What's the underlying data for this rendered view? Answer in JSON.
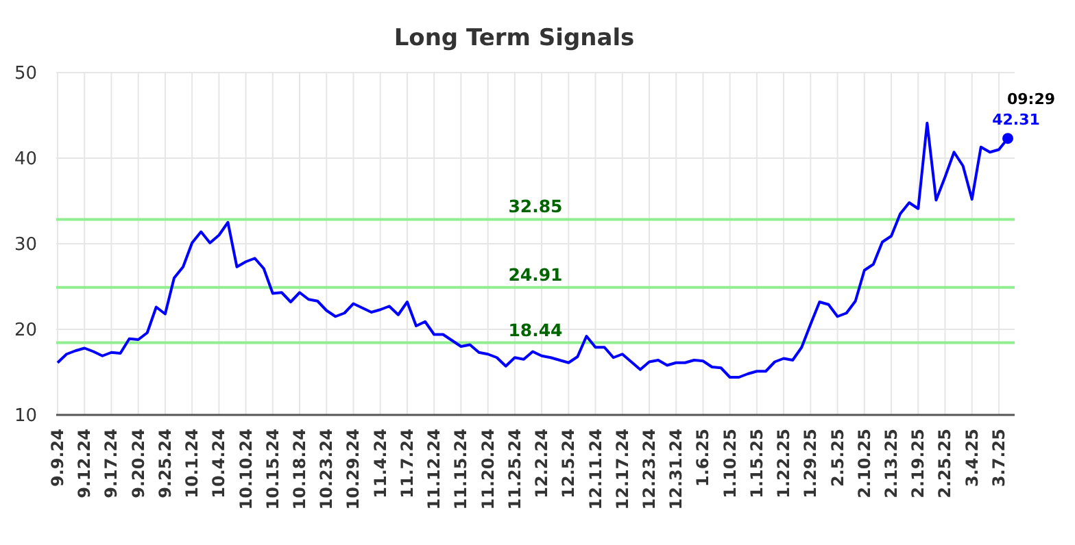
{
  "chart_data": {
    "type": "line",
    "title": "Long Term Signals",
    "categories": [
      "9.9.24",
      null,
      null,
      "9.12.24",
      null,
      null,
      "9.17.24",
      null,
      null,
      "9.20.24",
      null,
      null,
      "9.25.24",
      null,
      null,
      "10.1.24",
      null,
      null,
      "10.4.24",
      null,
      null,
      "10.10.24",
      null,
      null,
      "10.15.24",
      null,
      null,
      "10.18.24",
      null,
      null,
      "10.23.24",
      null,
      null,
      "10.29.24",
      null,
      null,
      "11.4.24",
      null,
      null,
      "11.7.24",
      null,
      null,
      "11.12.24",
      null,
      null,
      "11.15.24",
      null,
      null,
      "11.20.24",
      null,
      null,
      "11.25.24",
      null,
      null,
      "12.2.24",
      null,
      null,
      "12.5.24",
      null,
      null,
      "12.11.24",
      null,
      null,
      "12.17.24",
      null,
      null,
      "12.23.24",
      null,
      null,
      "12.31.24",
      null,
      null,
      "1.6.25",
      null,
      null,
      "1.10.25",
      null,
      null,
      "1.15.25",
      null,
      null,
      "1.22.25",
      null,
      null,
      "1.29.25",
      null,
      null,
      "2.5.25",
      null,
      null,
      "2.10.25",
      null,
      null,
      "2.13.25",
      null,
      null,
      "2.19.25",
      null,
      null,
      "2.25.25",
      null,
      null,
      "3.4.25",
      null,
      null,
      "3.7.25",
      null
    ],
    "series": [
      {
        "color": "#0000ff",
        "values": [
          16.1,
          17.1,
          17.5,
          17.8,
          17.4,
          16.9,
          17.3,
          17.2,
          18.9,
          18.8,
          19.6,
          22.6,
          21.8,
          26.0,
          27.3,
          30.1,
          31.4,
          30.1,
          31.0,
          32.5,
          27.3,
          27.9,
          28.3,
          27.1,
          24.2,
          24.3,
          23.2,
          24.3,
          23.5,
          23.3,
          22.2,
          21.5,
          21.9,
          23.0,
          22.5,
          22.0,
          22.3,
          22.7,
          21.7,
          23.2,
          20.4,
          20.9,
          19.4,
          19.4,
          18.7,
          18.0,
          18.2,
          17.3,
          17.1,
          16.7,
          15.7,
          16.7,
          16.5,
          17.4,
          16.9,
          16.7,
          16.4,
          16.1,
          16.8,
          19.2,
          17.9,
          17.9,
          16.7,
          17.1,
          16.2,
          15.3,
          16.2,
          16.4,
          15.8,
          16.1,
          16.1,
          16.4,
          16.3,
          15.6,
          15.5,
          14.4,
          14.4,
          14.8,
          15.1,
          15.1,
          16.2,
          16.6,
          16.4,
          17.9,
          20.6,
          23.2,
          22.9,
          21.5,
          21.9,
          23.3,
          26.9,
          27.6,
          30.2,
          30.9,
          33.5,
          34.8,
          34.1,
          44.1,
          35.1,
          37.8,
          40.7,
          39.1,
          35.2,
          41.3,
          40.7,
          41.0,
          42.31
        ],
        "value_labels": [
          null,
          null,
          null,
          null,
          null,
          null,
          null,
          null,
          null,
          null,
          null,
          null,
          null,
          null,
          null,
          null,
          null,
          null,
          null,
          null,
          null,
          null,
          null,
          null,
          null,
          null,
          null,
          null,
          null,
          null,
          null,
          null,
          null,
          null,
          null,
          null,
          null,
          null,
          null,
          null,
          null,
          null,
          null,
          null,
          null,
          null,
          null,
          null,
          null,
          null,
          null,
          null,
          null,
          null,
          null,
          null,
          null,
          null,
          null,
          null,
          null,
          null,
          null,
          null,
          null,
          null,
          null,
          null,
          null,
          null,
          null,
          null,
          null,
          null,
          null,
          null,
          null,
          null,
          null,
          null,
          null,
          null,
          null,
          null,
          null,
          null,
          null,
          null,
          null,
          null,
          null,
          null,
          null,
          null,
          null,
          null,
          null,
          null,
          null,
          null,
          null,
          null,
          null,
          null,
          null,
          null,
          "42.31"
        ]
      }
    ],
    "ylim": [
      10,
      50
    ],
    "yticks": [
      10,
      20,
      30,
      40,
      50
    ],
    "grid": true,
    "marker": "none",
    "line_style": "solid",
    "ref_lines": [
      {
        "axis": "y",
        "value": 32.85,
        "label": "32.85",
        "color": "#90ee90"
      },
      {
        "axis": "y",
        "value": 24.91,
        "label": "24.91",
        "color": "#90ee90"
      },
      {
        "axis": "y",
        "value": 18.44,
        "label": "18.44",
        "color": "#90ee90"
      }
    ],
    "annotations": [
      "09:29"
    ]
  }
}
